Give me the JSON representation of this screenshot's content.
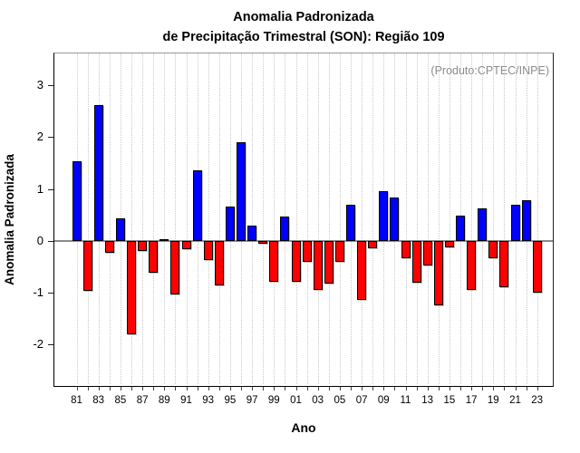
{
  "title": {
    "line1": "Anomalia Padronizada",
    "line2": "de Precipitação Trimestral (SON): Região 109"
  },
  "annotation": "(Produto:CPTEC/INPE)",
  "axes": {
    "ylabel": "Anomalia Padronizada",
    "xlabel": "Ano",
    "yticks": [
      3,
      2,
      1,
      0,
      -1,
      -2
    ]
  },
  "chart_data": {
    "type": "bar",
    "title": "Anomalia Padronizada de Precipitação Trimestral (SON): Região 109",
    "xlabel": "Ano",
    "ylabel": "Anomalia Padronizada",
    "ylim": [
      -2.8,
      3.6
    ],
    "grid": "vertical-dotted-per-year",
    "legend": "none",
    "annotation": "(Produto:CPTEC/INPE)",
    "positive_color": "#0000ff",
    "negative_color": "#ff0000",
    "bar_border_color": "#000000",
    "x_tick_label_every": 2,
    "categories": [
      "81",
      "82",
      "83",
      "84",
      "85",
      "86",
      "87",
      "88",
      "89",
      "90",
      "91",
      "92",
      "93",
      "94",
      "95",
      "96",
      "97",
      "98",
      "99",
      "00",
      "01",
      "02",
      "03",
      "04",
      "05",
      "06",
      "07",
      "08",
      "09",
      "10",
      "11",
      "12",
      "13",
      "14",
      "15",
      "16",
      "17",
      "18",
      "19",
      "20",
      "21",
      "22",
      "23"
    ],
    "values": [
      1.54,
      -0.97,
      2.62,
      -0.24,
      0.43,
      -1.81,
      -0.2,
      -0.61,
      0.03,
      -1.04,
      -0.16,
      1.35,
      -0.37,
      -0.87,
      0.66,
      1.9,
      0.3,
      -0.05,
      -0.79,
      0.46,
      -0.79,
      -0.41,
      -0.95,
      -0.83,
      -0.41,
      0.7,
      -1.15,
      -0.15,
      0.96,
      0.83,
      -0.33,
      -0.81,
      -0.47,
      -1.24,
      -0.13,
      0.49,
      -0.95,
      0.62,
      -0.33,
      -0.89,
      0.7,
      0.78,
      -1.01
    ]
  }
}
